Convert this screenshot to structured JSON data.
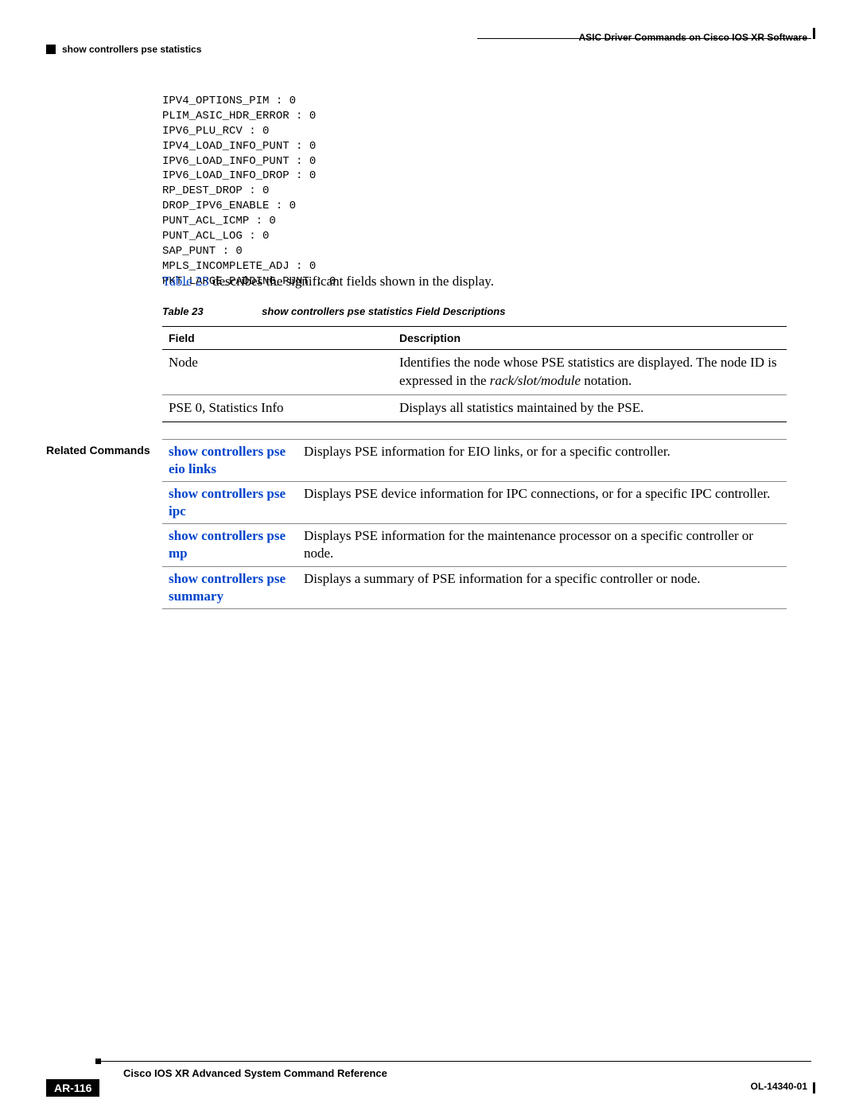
{
  "header": {
    "right": "ASIC Driver Commands on Cisco IOS XR Software",
    "left": "show controllers pse statistics"
  },
  "code": "IPV4_OPTIONS_PIM : 0\nPLIM_ASIC_HDR_ERROR : 0\nIPV6_PLU_RCV : 0\nIPV4_LOAD_INFO_PUNT : 0\nIPV6_LOAD_INFO_PUNT : 0\nIPV6_LOAD_INFO_DROP : 0\nRP_DEST_DROP : 0\nDROP_IPV6_ENABLE : 0\nPUNT_ACL_ICMP : 0\nPUNT_ACL_LOG : 0\nSAP_PUNT : 0\nMPLS_INCOMPLETE_ADJ : 0\nPKT_LARGE_PADDING_PUNT : 0",
  "body": {
    "link": "Table 23",
    "rest": " describes the significant fields shown in the display."
  },
  "caption": {
    "a": "Table 23",
    "b": "show controllers pse statistics Field Descriptions"
  },
  "fieldtable": {
    "h1": "Field",
    "h2": "Description",
    "r1c1": "Node",
    "r1c2a": "Identifies the node whose PSE statistics are displayed. The node ID is expressed in the ",
    "r1c2b": "rack/slot/module",
    "r1c2c": " notation.",
    "r2c1": "PSE 0, Statistics Info",
    "r2c2": "Displays all statistics maintained by the PSE."
  },
  "related": {
    "label": "Related Commands",
    "rows": [
      {
        "cmd": "show controllers pse eio links",
        "desc": "Displays PSE information for EIO links, or for a specific controller."
      },
      {
        "cmd": "show controllers pse ipc",
        "desc": "Displays PSE device information for IPC connections, or for a specific IPC controller."
      },
      {
        "cmd": "show controllers pse mp",
        "desc": "Displays PSE information for the maintenance processor on a specific controller or node."
      },
      {
        "cmd": "show controllers pse summary",
        "desc": "Displays a summary of PSE information for a specific controller or node."
      }
    ]
  },
  "footer": {
    "title": "Cisco IOS XR Advanced System Command Reference",
    "page": "AR-116",
    "doc": "OL-14340-01"
  }
}
